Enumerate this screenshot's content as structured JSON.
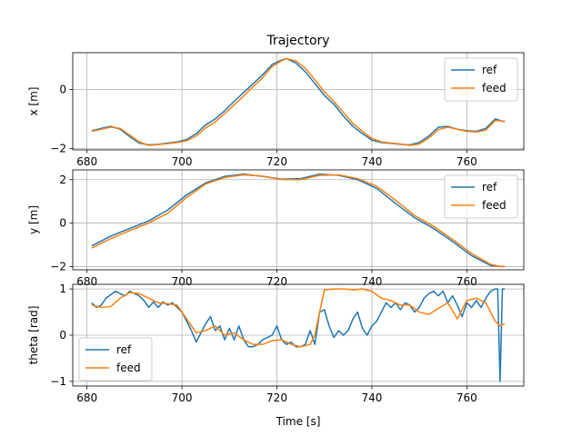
{
  "chart_data": [
    {
      "type": "line",
      "title": "Trajectory",
      "xlabel": "",
      "ylabel": "x [m]",
      "xlim": [
        677,
        772
      ],
      "ylim": [
        -2.05,
        1.25
      ],
      "xticks": [
        680,
        700,
        720,
        740,
        760
      ],
      "yticks": [
        -2,
        0
      ],
      "grid": true,
      "legend": "upper right",
      "series": [
        {
          "name": "ref",
          "color": "#1f77b4",
          "x": [
            681,
            683,
            685,
            687,
            689,
            691,
            693,
            695,
            697,
            699,
            701,
            703,
            705,
            707,
            709,
            711,
            713,
            715,
            717,
            719,
            721,
            722,
            724,
            726,
            728,
            730,
            732,
            734,
            736,
            738,
            740,
            742,
            744,
            746,
            748,
            750,
            752,
            754,
            756,
            758,
            760,
            762,
            764,
            766,
            768
          ],
          "values": [
            -1.4,
            -1.32,
            -1.25,
            -1.35,
            -1.6,
            -1.82,
            -1.88,
            -1.86,
            -1.82,
            -1.78,
            -1.7,
            -1.5,
            -1.2,
            -1.0,
            -0.72,
            -0.4,
            -0.1,
            0.2,
            0.5,
            0.85,
            1.0,
            1.05,
            0.9,
            0.6,
            0.2,
            -0.2,
            -0.5,
            -0.9,
            -1.25,
            -1.5,
            -1.72,
            -1.8,
            -1.83,
            -1.86,
            -1.88,
            -1.8,
            -1.58,
            -1.28,
            -1.25,
            -1.35,
            -1.4,
            -1.42,
            -1.32,
            -1.0,
            -1.1
          ]
        },
        {
          "name": "feed",
          "color": "#ff7f0e",
          "x": [
            681,
            683,
            685,
            687,
            689,
            691,
            693,
            695,
            697,
            699,
            701,
            703,
            705,
            707,
            709,
            711,
            713,
            715,
            717,
            719,
            721,
            722,
            724,
            726,
            728,
            730,
            732,
            734,
            736,
            738,
            740,
            742,
            744,
            746,
            748,
            750,
            752,
            754,
            756,
            758,
            760,
            762,
            764,
            766,
            768
          ],
          "values": [
            -1.42,
            -1.35,
            -1.28,
            -1.32,
            -1.55,
            -1.78,
            -1.9,
            -1.87,
            -1.84,
            -1.8,
            -1.74,
            -1.58,
            -1.3,
            -1.1,
            -0.82,
            -0.52,
            -0.22,
            0.1,
            0.4,
            0.78,
            0.98,
            1.05,
            0.97,
            0.72,
            0.33,
            -0.08,
            -0.4,
            -0.78,
            -1.15,
            -1.42,
            -1.66,
            -1.78,
            -1.82,
            -1.85,
            -1.9,
            -1.85,
            -1.65,
            -1.36,
            -1.28,
            -1.35,
            -1.42,
            -1.44,
            -1.38,
            -1.05,
            -1.08
          ]
        }
      ]
    },
    {
      "type": "line",
      "title": "",
      "xlabel": "",
      "ylabel": "y [m]",
      "xlim": [
        677,
        772
      ],
      "ylim": [
        -2.15,
        2.45
      ],
      "xticks": [
        680,
        700,
        720,
        740,
        760
      ],
      "yticks": [
        -2,
        0,
        2
      ],
      "grid": true,
      "legend": "upper right",
      "series": [
        {
          "name": "ref",
          "color": "#1f77b4",
          "x": [
            681,
            685,
            689,
            693,
            697,
            701,
            705,
            709,
            713,
            717,
            721,
            725,
            729,
            733,
            737,
            741,
            745,
            749,
            753,
            757,
            761,
            765,
            767,
            768
          ],
          "values": [
            -1.05,
            -0.6,
            -0.25,
            0.1,
            0.6,
            1.3,
            1.85,
            2.15,
            2.25,
            2.15,
            2.02,
            2.05,
            2.25,
            2.2,
            2.0,
            1.6,
            0.9,
            0.25,
            -0.25,
            -0.85,
            -1.5,
            -1.95,
            -2.0,
            -2.0
          ]
        },
        {
          "name": "feed",
          "color": "#ff7f0e",
          "x": [
            681,
            685,
            689,
            693,
            697,
            701,
            705,
            709,
            713,
            717,
            721,
            725,
            729,
            733,
            737,
            741,
            745,
            749,
            753,
            757,
            761,
            765,
            767,
            768
          ],
          "values": [
            -1.15,
            -0.72,
            -0.35,
            0.0,
            0.45,
            1.18,
            1.8,
            2.1,
            2.22,
            2.16,
            2.0,
            2.0,
            2.2,
            2.22,
            2.05,
            1.7,
            1.05,
            0.35,
            -0.15,
            -0.75,
            -1.4,
            -1.9,
            -2.0,
            -2.0
          ]
        }
      ]
    },
    {
      "type": "line",
      "title": "",
      "xlabel": "Time [s]",
      "ylabel": "theta [rad]",
      "xlim": [
        677,
        772
      ],
      "ylim": [
        -1.1,
        1.1
      ],
      "xticks": [
        680,
        700,
        720,
        740,
        760
      ],
      "yticks": [
        -1,
        0,
        1
      ],
      "grid": true,
      "legend": "lower left",
      "series": [
        {
          "name": "ref",
          "color": "#1f77b4",
          "x": [
            681,
            682,
            683,
            684,
            686,
            688,
            689,
            690,
            691,
            692,
            693,
            694,
            695,
            696,
            697,
            698,
            699,
            700,
            701,
            702,
            703,
            704,
            705,
            706,
            707,
            708,
            709,
            710,
            711,
            712,
            713,
            714,
            715,
            716,
            717,
            718,
            719,
            720,
            721,
            722,
            723,
            724,
            725,
            726,
            727,
            728,
            729,
            730,
            731,
            732,
            733,
            734,
            735,
            736,
            737,
            738,
            739,
            740,
            741,
            742,
            743,
            744,
            745,
            746,
            747,
            748,
            749,
            750,
            751,
            752,
            753,
            754,
            755,
            756,
            757,
            758,
            759,
            760,
            761,
            762,
            763,
            764,
            765,
            766,
            766.5,
            767,
            767.5,
            768
          ],
          "values": [
            0.7,
            0.6,
            0.65,
            0.8,
            0.95,
            0.85,
            0.95,
            0.9,
            0.85,
            0.75,
            0.6,
            0.72,
            0.6,
            0.72,
            0.65,
            0.7,
            0.6,
            0.5,
            0.3,
            0.1,
            -0.15,
            0.05,
            0.25,
            0.4,
            0.1,
            0.2,
            -0.1,
            0.15,
            -0.1,
            0.2,
            -0.1,
            -0.25,
            -0.25,
            -0.2,
            -0.1,
            -0.05,
            0.0,
            0.2,
            -0.1,
            -0.2,
            -0.15,
            -0.25,
            -0.25,
            -0.2,
            0.1,
            -0.2,
            0.5,
            0.55,
            0.2,
            -0.05,
            0.1,
            0.0,
            0.1,
            0.35,
            0.5,
            0.15,
            0.0,
            0.2,
            0.3,
            0.5,
            0.7,
            0.6,
            0.7,
            0.55,
            0.7,
            0.65,
            0.5,
            0.6,
            0.8,
            0.9,
            0.95,
            0.85,
            0.95,
            0.7,
            0.85,
            0.65,
            0.4,
            0.7,
            0.6,
            0.75,
            0.6,
            0.8,
            0.95,
            1.0,
            1.0,
            -1.0,
            1.0,
            1.0
          ]
        },
        {
          "name": "feed",
          "color": "#ff7f0e",
          "x": [
            681,
            683,
            685,
            687,
            689,
            691,
            693,
            695,
            697,
            699,
            701,
            703,
            705,
            707,
            709,
            711,
            713,
            715,
            717,
            719,
            721,
            723,
            725,
            727,
            728,
            729,
            730,
            732,
            734,
            736,
            738,
            740,
            742,
            744,
            746,
            748,
            750,
            752,
            754,
            756,
            758,
            760,
            762,
            764,
            766,
            767,
            768
          ],
          "values": [
            0.65,
            0.6,
            0.62,
            0.8,
            0.92,
            0.9,
            0.8,
            0.7,
            0.68,
            0.65,
            0.35,
            0.05,
            0.1,
            0.2,
            0.0,
            0.05,
            -0.1,
            -0.2,
            -0.2,
            -0.12,
            -0.1,
            -0.2,
            -0.25,
            -0.2,
            0.0,
            0.5,
            0.98,
            1.0,
            1.0,
            0.98,
            1.0,
            0.95,
            0.8,
            0.75,
            0.65,
            0.65,
            0.5,
            0.45,
            0.58,
            0.7,
            0.35,
            0.75,
            0.8,
            0.7,
            0.3,
            0.2,
            0.25
          ]
        }
      ]
    }
  ]
}
